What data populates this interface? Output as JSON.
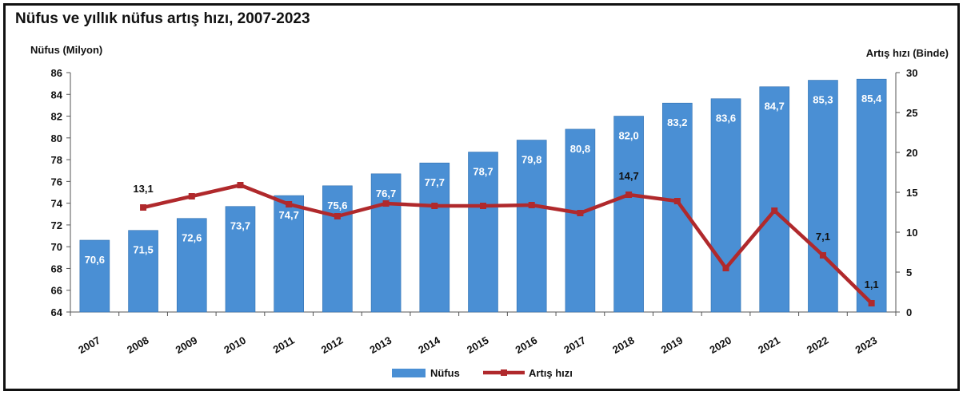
{
  "title": "Nüfus ve yıllık nüfus artış hızı, 2007-2023",
  "colors": {
    "bar": "#4a8fd4",
    "bar_edge": "#2f6fb0",
    "line": "#b0292c",
    "axis": "#555555",
    "text": "#111111",
    "bar_label": "#ffffff"
  },
  "chart_data": {
    "type": "bar",
    "title": "Nüfus ve yıllık nüfus artış hızı, 2007-2023",
    "categories": [
      "2007",
      "2008",
      "2009",
      "2010",
      "2011",
      "2012",
      "2013",
      "2014",
      "2015",
      "2016",
      "2017",
      "2018",
      "2019",
      "2020",
      "2021",
      "2022",
      "2023"
    ],
    "ylabel": "Nüfus (Milyon)",
    "y2label": "Artış hızı (Binde)",
    "ylim": [
      64,
      86
    ],
    "y2lim": [
      0,
      30
    ],
    "yticks": [
      "64",
      "66",
      "68",
      "70",
      "72",
      "74",
      "76",
      "78",
      "80",
      "82",
      "84",
      "86"
    ],
    "y2ticks": [
      "0",
      "5",
      "10",
      "15",
      "20",
      "25",
      "30"
    ],
    "legend_position": "bottom-center",
    "series": [
      {
        "name": "Nüfus",
        "type": "bar",
        "axis": "left",
        "values": [
          70.6,
          71.5,
          72.6,
          73.7,
          74.7,
          75.6,
          76.7,
          77.7,
          78.7,
          79.8,
          80.8,
          82.0,
          83.2,
          83.6,
          84.7,
          85.3,
          85.4
        ],
        "labels": [
          "70,6",
          "71,5",
          "72,6",
          "73,7",
          "74,7",
          "75,6",
          "76,7",
          "77,7",
          "78,7",
          "79,8",
          "80,8",
          "82,0",
          "83,2",
          "83,6",
          "84,7",
          "85,3",
          "85,4"
        ]
      },
      {
        "name": "Artış hızı",
        "type": "line",
        "axis": "right",
        "values": [
          null,
          13.1,
          14.5,
          15.9,
          13.5,
          12.0,
          13.6,
          13.3,
          13.3,
          13.4,
          12.4,
          14.7,
          13.9,
          5.5,
          12.7,
          7.1,
          1.1
        ],
        "labels": [
          null,
          "13,1",
          null,
          null,
          null,
          null,
          null,
          null,
          null,
          null,
          null,
          "14,7",
          null,
          null,
          null,
          "7,1",
          "1,1"
        ]
      }
    ]
  }
}
